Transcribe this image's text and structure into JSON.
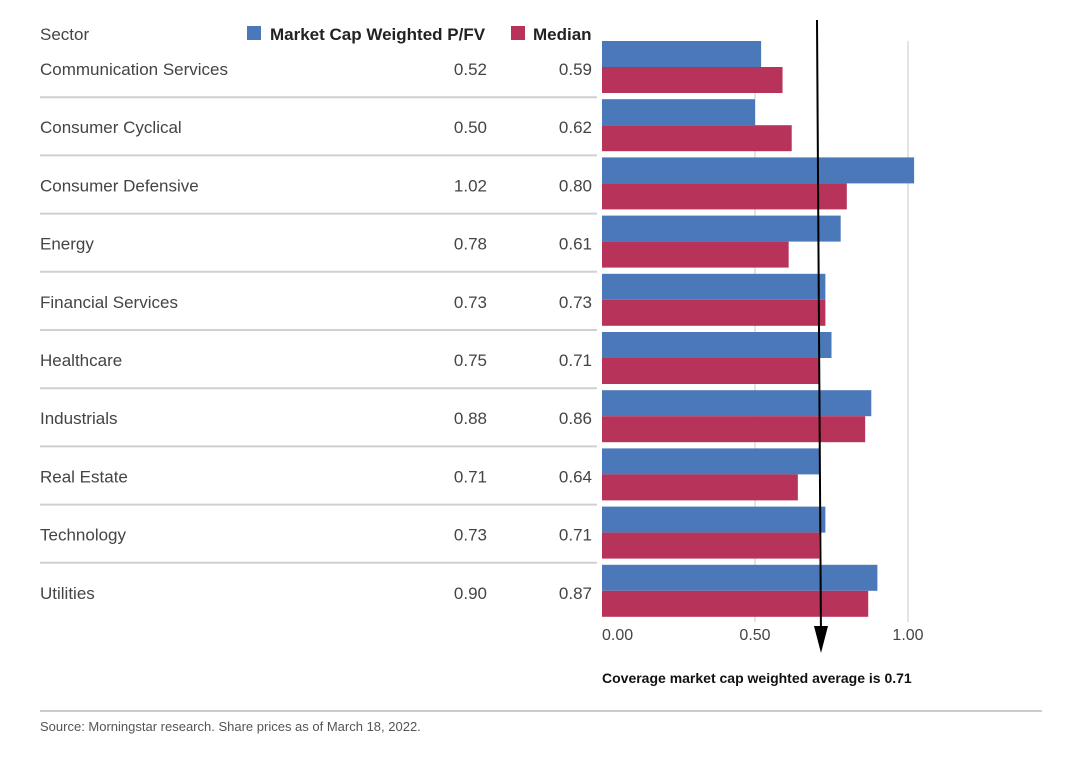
{
  "chart_data": {
    "type": "bar",
    "orientation": "horizontal",
    "header": "Sector",
    "categories": [
      "Communication Services",
      "Consumer Cyclical",
      "Consumer Defensive",
      "Energy",
      "Financial Services",
      "Healthcare",
      "Industrials",
      "Real Estate",
      "Technology",
      "Utilities"
    ],
    "series": [
      {
        "name": "Market Cap Weighted P/FV",
        "color": "#4a78b8",
        "values": [
          0.52,
          0.5,
          1.02,
          0.78,
          0.73,
          0.75,
          0.88,
          0.71,
          0.73,
          0.9
        ],
        "labels": [
          "0.52",
          "0.50",
          "1.02",
          "0.78",
          "0.73",
          "0.75",
          "0.88",
          "0.71",
          "0.73",
          "0.90"
        ]
      },
      {
        "name": "Median",
        "color": "#b8335a",
        "values": [
          0.59,
          0.62,
          0.8,
          0.61,
          0.73,
          0.71,
          0.86,
          0.64,
          0.71,
          0.87
        ],
        "labels": [
          "0.59",
          "0.62",
          "0.80",
          "0.61",
          "0.73",
          "0.71",
          "0.86",
          "0.64",
          "0.71",
          "0.87"
        ]
      }
    ],
    "xlim": [
      0,
      1.0
    ],
    "xticks": [
      0,
      0.5,
      1.0
    ],
    "xtick_labels": [
      "0.00",
      "0.50",
      "1.00"
    ],
    "grid": true,
    "reference_line": {
      "value": 0.71,
      "label": "Coverage market cap weighted average is 0.71"
    },
    "legend_position": "top"
  },
  "source": "Source: Morningstar research. Share prices as of March 18, 2022."
}
